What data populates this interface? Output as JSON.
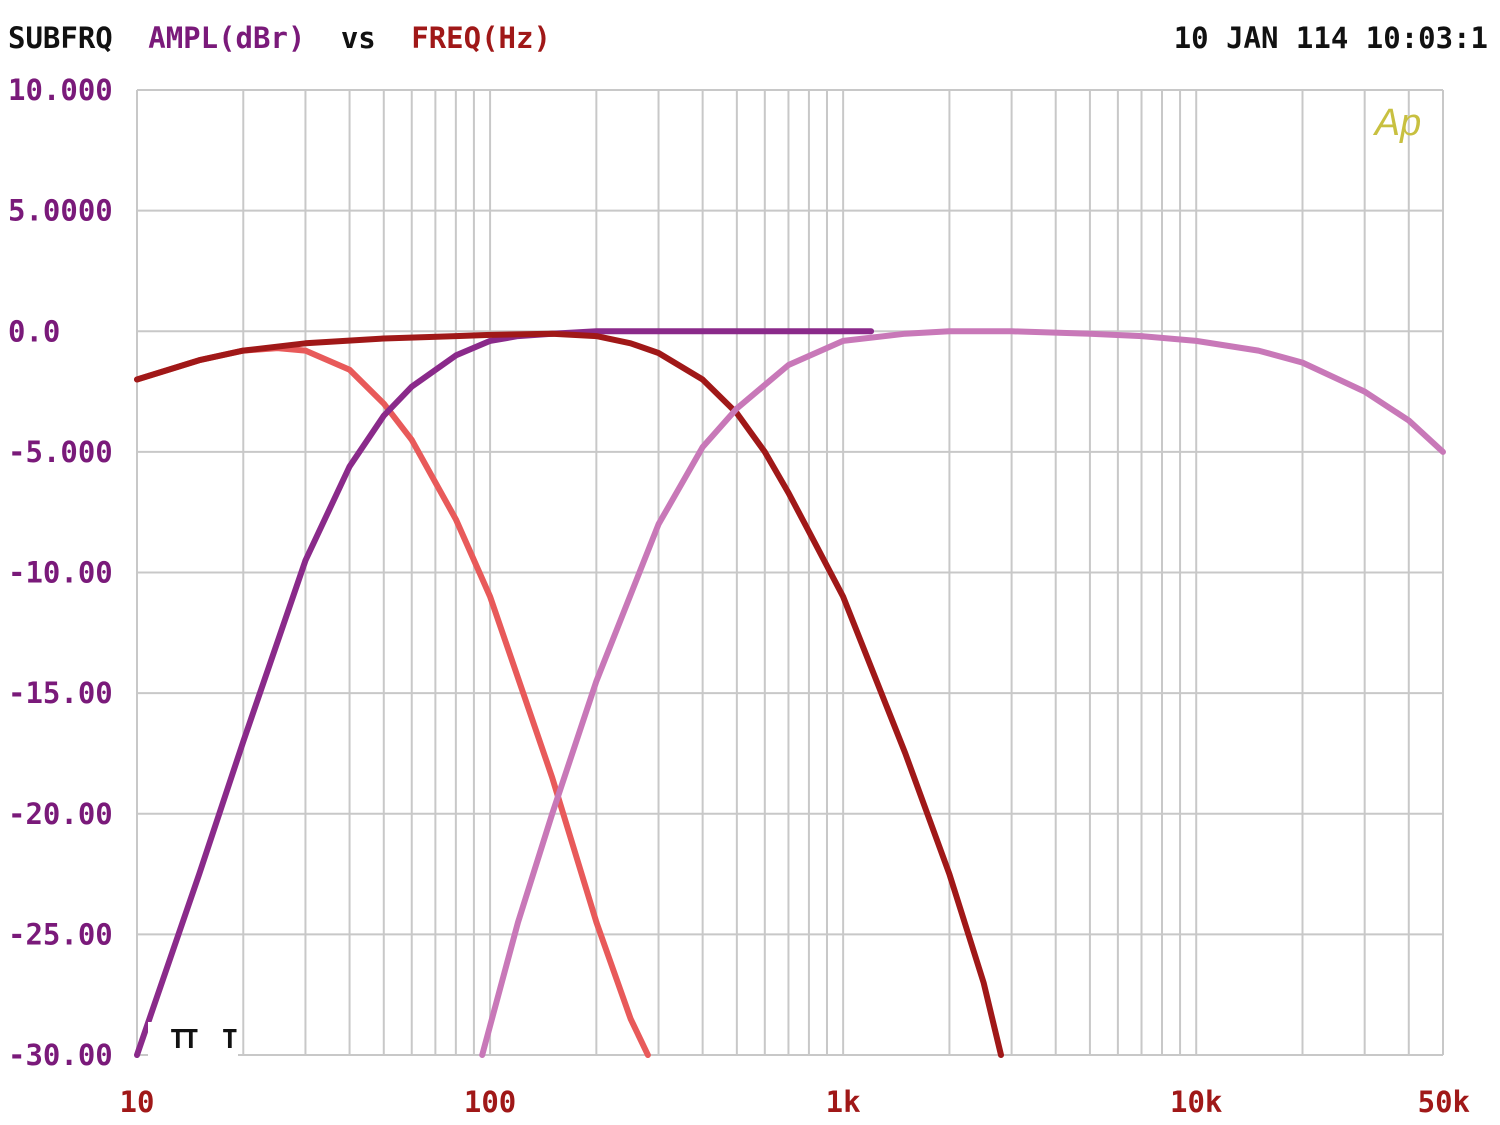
{
  "header": {
    "program": "SUBFRQ",
    "y_measure": "AMPL(dBr)",
    "vs": "vs",
    "x_measure": "FREQ(Hz)",
    "timestamp": "10 JAN 114 10:03:1"
  },
  "logo": "Ap",
  "markers": [
    "T",
    "T",
    "T"
  ],
  "colors": {
    "black_text": "#111111",
    "y_label": "#7a1a7a",
    "x_label": "#a01818",
    "grid": "#c8c8c8",
    "logo": "#c8c040"
  },
  "chart_data": {
    "type": "line",
    "xscale": "log",
    "xlim": [
      10,
      50000
    ],
    "ylim": [
      -30,
      10
    ],
    "grid": true,
    "x_ticks": [
      {
        "value": 10,
        "label": "10"
      },
      {
        "value": 100,
        "label": "100"
      },
      {
        "value": 1000,
        "label": "1k"
      },
      {
        "value": 10000,
        "label": "10k"
      },
      {
        "value": 50000,
        "label": "50k"
      }
    ],
    "y_ticks": [
      {
        "value": 10,
        "label": "10.000"
      },
      {
        "value": 5,
        "label": "5.0000"
      },
      {
        "value": 0,
        "label": "0.0"
      },
      {
        "value": -5,
        "label": "-5.000"
      },
      {
        "value": -10,
        "label": "-10.00"
      },
      {
        "value": -15,
        "label": "-15.00"
      },
      {
        "value": -20,
        "label": "-20.00"
      },
      {
        "value": -25,
        "label": "-25.00"
      },
      {
        "value": -30,
        "label": "-30.00"
      }
    ],
    "series": [
      {
        "color": "#e85a5a",
        "x": [
          10,
          15,
          20,
          25,
          30,
          40,
          50,
          60,
          80,
          100,
          150,
          200,
          250,
          280
        ],
        "y": [
          -2.0,
          -1.2,
          -0.8,
          -0.7,
          -0.8,
          -1.6,
          -3.0,
          -4.5,
          -7.8,
          -11.0,
          -18.5,
          -24.5,
          -28.5,
          -30.0
        ]
      },
      {
        "color": "#8a2a8a",
        "x": [
          10,
          15,
          20,
          30,
          40,
          50,
          60,
          80,
          100,
          120,
          150,
          200,
          300,
          500,
          700,
          1000,
          1200
        ],
        "y": [
          -30.0,
          -22.5,
          -17.0,
          -9.5,
          -5.6,
          -3.5,
          -2.3,
          -1.0,
          -0.4,
          -0.2,
          -0.1,
          0.0,
          0.0,
          0.0,
          0.0,
          0.0,
          0.0
        ]
      },
      {
        "color": "#a01818",
        "x": [
          10,
          15,
          20,
          30,
          50,
          80,
          100,
          150,
          200,
          250,
          300,
          400,
          500,
          600,
          700,
          800,
          1000,
          1500,
          2000,
          2500,
          2800
        ],
        "y": [
          -2.0,
          -1.2,
          -0.8,
          -0.5,
          -0.3,
          -0.2,
          -0.15,
          -0.1,
          -0.2,
          -0.5,
          -0.9,
          -2.0,
          -3.4,
          -5.0,
          -6.7,
          -8.3,
          -11.0,
          -17.5,
          -22.5,
          -27.0,
          -30.0
        ]
      },
      {
        "color": "#c878b8",
        "x": [
          95,
          120,
          150,
          200,
          300,
          400,
          500,
          700,
          1000,
          1500,
          2000,
          3000,
          5000,
          7000,
          10000,
          15000,
          20000,
          30000,
          40000,
          50000
        ],
        "y": [
          -30.0,
          -24.5,
          -20.0,
          -14.5,
          -8.0,
          -4.8,
          -3.2,
          -1.4,
          -0.4,
          -0.1,
          0.0,
          0.0,
          -0.1,
          -0.2,
          -0.4,
          -0.8,
          -1.3,
          -2.5,
          -3.7,
          -5.0
        ]
      }
    ]
  }
}
